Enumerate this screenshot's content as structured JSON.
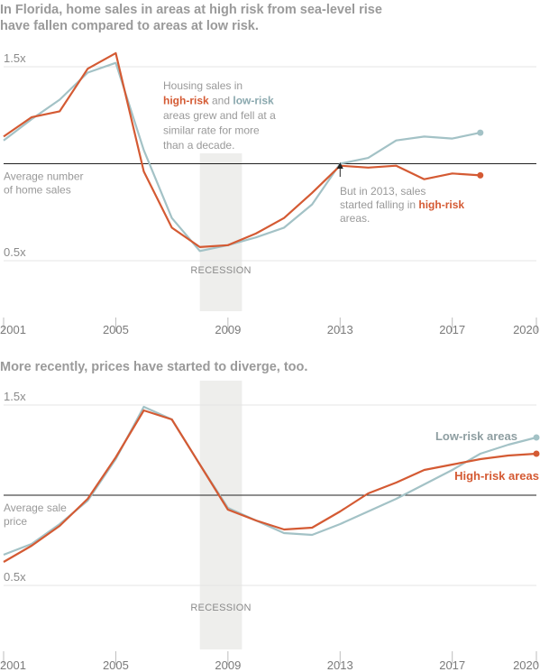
{
  "colors": {
    "high_risk": "#d45a33",
    "low_risk": "#a3c2c6",
    "recession": "#eeeeec"
  },
  "chart_data": [
    {
      "type": "line",
      "title": "In Florida, home sales in areas at high risk from sea-level rise have fallen compared to areas at low risk.",
      "title_lines": [
        "In Florida, home sales in areas at high risk from sea-level rise",
        "have fallen compared to areas at low risk."
      ],
      "y_ticks": [
        {
          "value": 1.5,
          "label": "1.5x"
        },
        {
          "value": 0.5,
          "label": "0.5x"
        }
      ],
      "x_ticks": [
        2001,
        2005,
        2009,
        2013,
        2017,
        2020
      ],
      "baseline_label_lines": [
        "Average number",
        "of home sales"
      ],
      "recession": {
        "from": 2008,
        "to": 2009.5,
        "label": "RECESSION"
      },
      "note_lines": [
        [
          {
            "t": "Housing sales in"
          }
        ],
        [
          {
            "t": "high-risk",
            "c": "hi"
          },
          {
            "t": " and "
          },
          {
            "t": "low-risk",
            "c": "lo"
          }
        ],
        [
          {
            "t": "areas grew and fell at a"
          }
        ],
        [
          {
            "t": "similar rate for more"
          }
        ],
        [
          {
            "t": "than a decade."
          }
        ]
      ],
      "note2_lines": [
        [
          {
            "t": "But in 2013, sales"
          }
        ],
        [
          {
            "t": "started falling in "
          },
          {
            "t": "high-risk",
            "c": "hi"
          }
        ],
        [
          {
            "t": "areas."
          }
        ]
      ],
      "series": [
        {
          "name": "Low-risk areas",
          "color": "#a3c2c6",
          "x": [
            2001,
            2002,
            2003,
            2004,
            2005,
            2006,
            2007,
            2008,
            2009,
            2010,
            2011,
            2012,
            2013,
            2014,
            2015,
            2016,
            2017,
            2018
          ],
          "y": [
            1.12,
            1.23,
            1.33,
            1.47,
            1.52,
            1.07,
            0.72,
            0.55,
            0.58,
            0.62,
            0.67,
            0.79,
            1.0,
            1.03,
            1.12,
            1.14,
            1.13,
            1.16
          ]
        },
        {
          "name": "High-risk areas",
          "color": "#d45a33",
          "x": [
            2001,
            2002,
            2003,
            2004,
            2005,
            2006,
            2007,
            2008,
            2009,
            2010,
            2011,
            2012,
            2013,
            2014,
            2015,
            2016,
            2017,
            2018
          ],
          "y": [
            1.14,
            1.24,
            1.27,
            1.49,
            1.57,
            0.96,
            0.67,
            0.57,
            0.58,
            0.64,
            0.72,
            0.85,
            0.99,
            0.98,
            0.99,
            0.92,
            0.95,
            0.94
          ]
        }
      ]
    },
    {
      "type": "line",
      "title": "More recently, prices have started to diverge, too.",
      "y_ticks": [
        {
          "value": 1.5,
          "label": "1.5x"
        },
        {
          "value": 0.5,
          "label": "0.5x"
        }
      ],
      "x_ticks": [
        2001,
        2005,
        2009,
        2013,
        2017,
        2020
      ],
      "baseline_label_lines": [
        "Average sale",
        "price"
      ],
      "recession": {
        "from": 2008,
        "to": 2009.5,
        "label": "RECESSION"
      },
      "series": [
        {
          "name": "Low-risk areas",
          "color": "#a3c2c6",
          "x": [
            2001,
            2002,
            2003,
            2004,
            2005,
            2006,
            2007,
            2008,
            2009,
            2010,
            2011,
            2012,
            2013,
            2014,
            2015,
            2016,
            2017,
            2018,
            2019,
            2020
          ],
          "y": [
            0.67,
            0.73,
            0.84,
            0.97,
            1.2,
            1.49,
            1.42,
            1.17,
            0.93,
            0.86,
            0.79,
            0.78,
            0.84,
            0.91,
            0.98,
            1.06,
            1.14,
            1.23,
            1.28,
            1.32
          ]
        },
        {
          "name": "High-risk areas",
          "color": "#d45a33",
          "x": [
            2001,
            2002,
            2003,
            2004,
            2005,
            2006,
            2007,
            2008,
            2009,
            2010,
            2011,
            2012,
            2013,
            2014,
            2015,
            2016,
            2017,
            2018,
            2019,
            2020
          ],
          "y": [
            0.63,
            0.72,
            0.83,
            0.98,
            1.21,
            1.47,
            1.42,
            1.17,
            0.92,
            0.86,
            0.81,
            0.82,
            0.91,
            1.01,
            1.07,
            1.14,
            1.17,
            1.2,
            1.22,
            1.23
          ]
        }
      ]
    }
  ]
}
